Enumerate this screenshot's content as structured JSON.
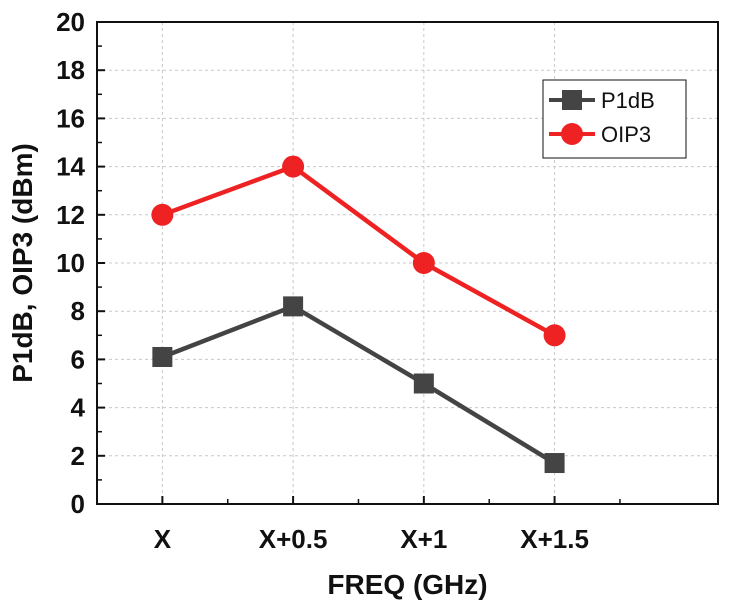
{
  "chart_data": {
    "type": "line",
    "categories": [
      "X",
      "X+0.5",
      "X+1",
      "X+1.5"
    ],
    "series": [
      {
        "name": "P1dB",
        "values": [
          6.1,
          8.2,
          5.0,
          1.7
        ],
        "color": "#444444",
        "marker": "square"
      },
      {
        "name": "OIP3",
        "values": [
          12.0,
          14.0,
          10.0,
          7.0
        ],
        "color": "#ee2222",
        "marker": "circle"
      }
    ],
    "title": "",
    "xlabel": "FREQ (GHz)",
    "ylabel": "P1dB, OIP3 (dBm)",
    "ylim": [
      0,
      20
    ],
    "yticks": [
      "0",
      "2",
      "4",
      "6",
      "8",
      "10",
      "12",
      "14",
      "16",
      "18",
      "20"
    ],
    "grid": true,
    "legend_position": "top-right"
  }
}
